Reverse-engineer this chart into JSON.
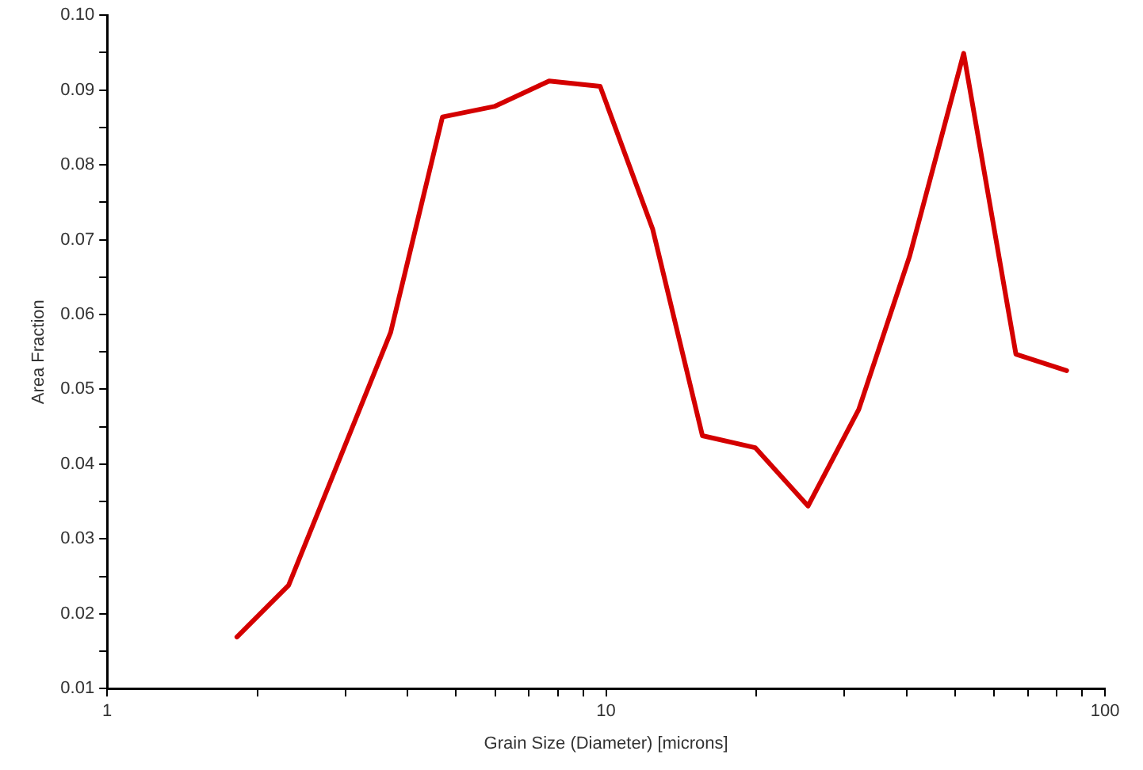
{
  "chart_data": {
    "type": "line",
    "xlabel": "Grain Size (Diameter) [microns]",
    "ylabel": "Area Fraction",
    "x": [
      1.82,
      2.31,
      3.7,
      4.7,
      5.97,
      7.69,
      9.73,
      12.4,
      15.6,
      19.9,
      25.4,
      32.1,
      40.6,
      52.1,
      66.3,
      83.8
    ],
    "series": [
      {
        "color": "#d40000",
        "values": [
          0.0169,
          0.0238,
          0.0576,
          0.0864,
          0.0878,
          0.0912,
          0.0905,
          0.0714,
          0.0438,
          0.0422,
          0.0344,
          0.0473,
          0.0678,
          0.0949,
          0.0547,
          0.0525
        ]
      }
    ],
    "log": "x",
    "xlim": [
      1,
      100
    ],
    "xticks": [
      1,
      {
        "value": 2,
        "label": null
      },
      {
        "value": 3,
        "label": null
      },
      {
        "value": 4,
        "label": null
      },
      {
        "value": 5,
        "label": null
      },
      {
        "value": 6,
        "label": null
      },
      {
        "value": 7,
        "label": null
      },
      {
        "value": 8,
        "label": null
      },
      {
        "value": 9,
        "label": null
      },
      10,
      {
        "value": 20,
        "label": null
      },
      {
        "value": 30,
        "label": null
      },
      {
        "value": 40,
        "label": null
      },
      {
        "value": 50,
        "label": null
      },
      {
        "value": 60,
        "label": null
      },
      {
        "value": 70,
        "label": null
      },
      {
        "value": 80,
        "label": null
      },
      {
        "value": 90,
        "label": null
      },
      100
    ],
    "ylim": [
      0.01,
      0.1
    ],
    "yticks": [
      0.01,
      {
        "value": 0.015,
        "label": null
      },
      0.02,
      {
        "value": 0.025,
        "label": null
      },
      0.03,
      {
        "value": 0.035,
        "label": null
      },
      0.04,
      {
        "value": 0.045,
        "label": null
      },
      0.05,
      {
        "value": 0.055,
        "label": null
      },
      0.06,
      {
        "value": 0.065,
        "label": null
      },
      0.07,
      {
        "value": 0.075,
        "label": null
      },
      0.08,
      {
        "value": 0.085,
        "label": null
      },
      0.09,
      {
        "value": 0.095,
        "label": null
      },
      {
        "value": 0.1,
        "label": "0.10"
      }
    ],
    "grid": false,
    "legend": false,
    "marker": "none",
    "line_style": "solid"
  }
}
